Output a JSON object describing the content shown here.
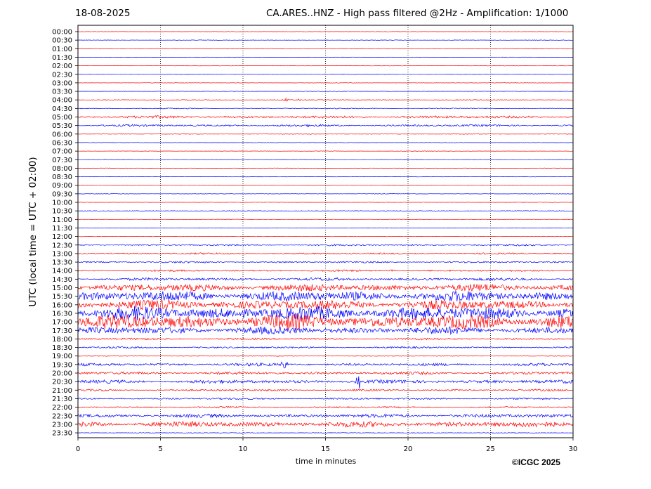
{
  "header": {
    "date": "18-08-2025",
    "title": "CA.ARES..HNZ - High pass filtered @2Hz - Amplification: 1/1000"
  },
  "footer": {
    "copyright": "©ICGC 2025"
  },
  "chart_data": {
    "type": "line",
    "title": "CA.ARES..HNZ - High pass filtered @2Hz - Amplification: 1/1000",
    "xlabel": "time in minutes",
    "ylabel": "UTC (local time = UTC + 02:00)",
    "xlim": [
      0,
      30
    ],
    "x_ticks": [
      "0",
      "5",
      "10",
      "15",
      "20",
      "25",
      "30"
    ],
    "x_grid": "dotted vertical lines every 5 minutes",
    "row_labels": [
      "00:00",
      "00:30",
      "01:00",
      "01:30",
      "02:00",
      "02:30",
      "03:00",
      "03:30",
      "04:00",
      "04:30",
      "05:00",
      "05:30",
      "06:00",
      "06:30",
      "07:00",
      "07:30",
      "08:00",
      "08:30",
      "09:00",
      "09:30",
      "10:00",
      "10:30",
      "11:00",
      "11:30",
      "12:00",
      "12:30",
      "13:00",
      "13:30",
      "14:00",
      "14:30",
      "15:00",
      "15:30",
      "16:00",
      "16:30",
      "17:00",
      "17:30",
      "18:00",
      "18:30",
      "19:00",
      "19:30",
      "20:00",
      "20:30",
      "21:00",
      "21:30",
      "22:00",
      "22:30",
      "23:00",
      "23:30"
    ],
    "trace_colors": [
      "#ff0000",
      "#0000ff"
    ],
    "row_amplitude": [
      0.3,
      0.3,
      0.3,
      0.3,
      0.3,
      0.3,
      0.3,
      0.3,
      0.5,
      0.6,
      1.6,
      1.3,
      0.3,
      0.3,
      0.3,
      0.3,
      0.3,
      0.3,
      0.3,
      0.3,
      0.3,
      0.4,
      0.3,
      0.3,
      0.3,
      1.1,
      1.0,
      1.1,
      1.2,
      1.8,
      4.5,
      6.5,
      6.0,
      8.5,
      9.0,
      4.5,
      1.2,
      1.1,
      0.4,
      1.8,
      1.8,
      2.2,
      1.2,
      1.2,
      1.0,
      2.2,
      3.5,
      0.4
    ],
    "events": [
      {
        "row": "04:00",
        "minute": 12.6,
        "peak": 2.5
      },
      {
        "row": "04:00",
        "minute": 13.5,
        "peak": 2.5
      },
      {
        "row": "14:00",
        "minute": 19.0,
        "peak": 3.0
      },
      {
        "row": "19:30",
        "minute": 12.5,
        "peak": 10.0
      },
      {
        "row": "20:30",
        "minute": 17.0,
        "peak": 11.0
      }
    ],
    "grid": true
  }
}
